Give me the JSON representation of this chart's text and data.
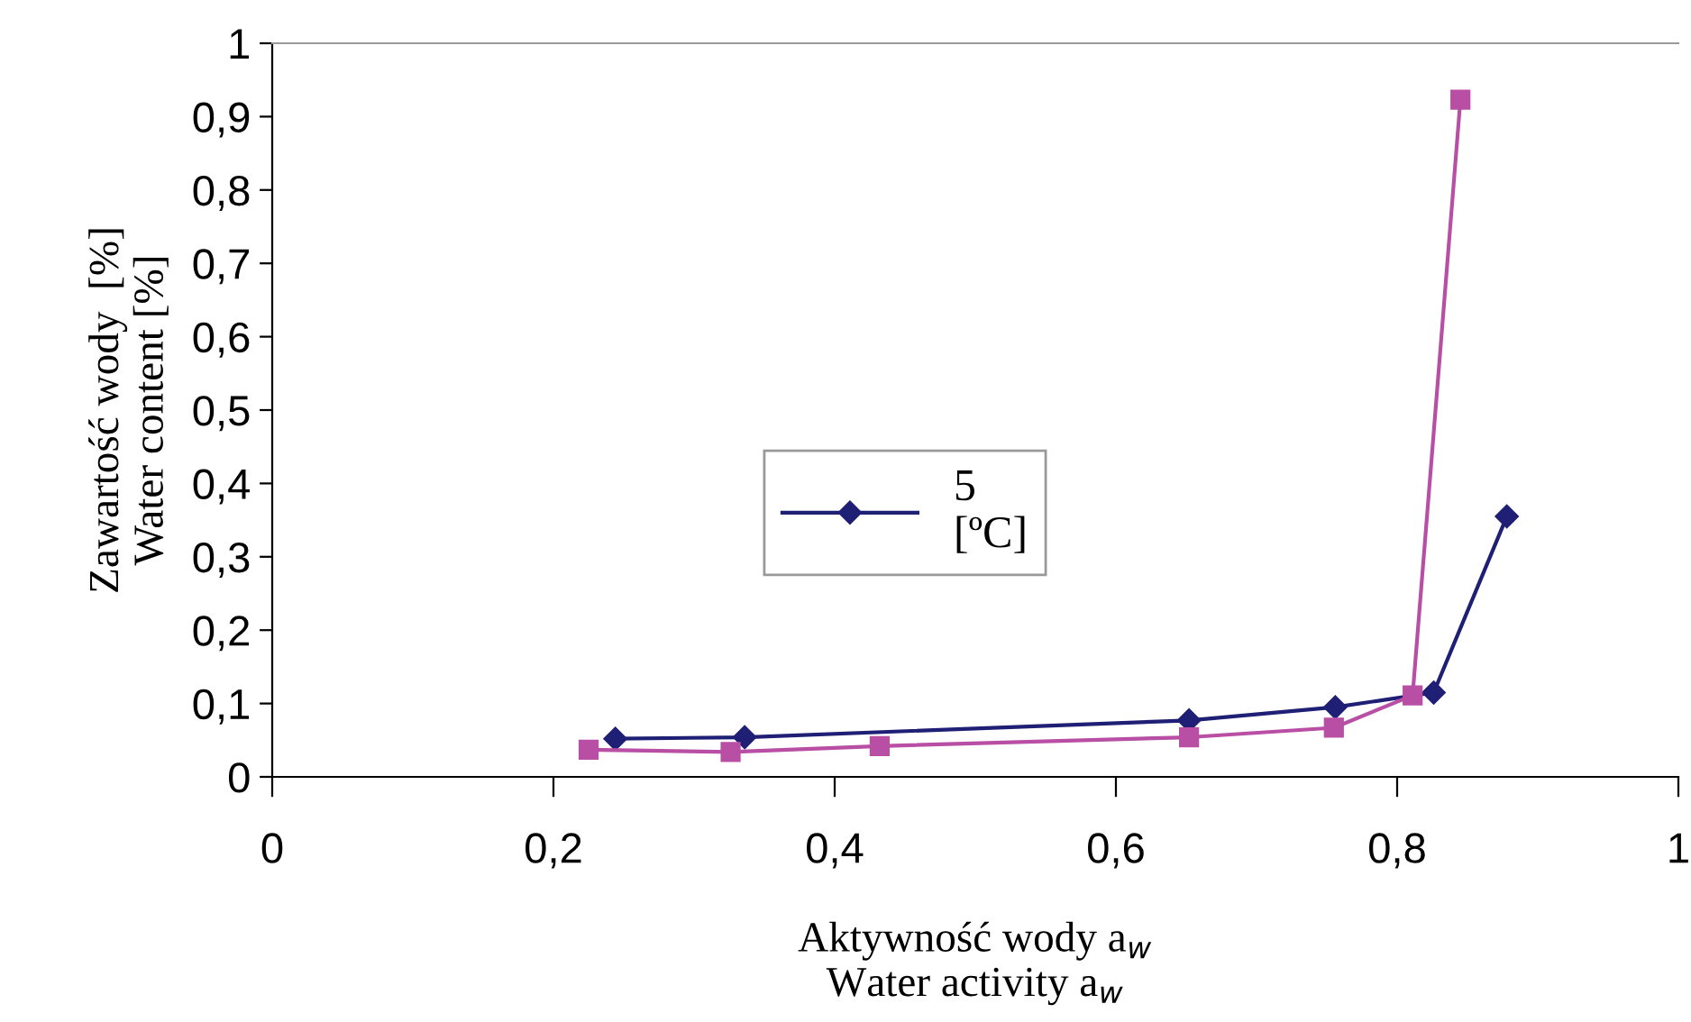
{
  "chart_data": {
    "type": "line",
    "xlabel": "Aktywność wody a$_{w}$\nWater activity a$_{w}$",
    "ylabel": "Zawartość wody  [%]\nWater content [%]",
    "xlim": [
      0,
      1
    ],
    "ylim": [
      0,
      1
    ],
    "xticks": [
      0,
      {
        "value": 0.2,
        "label": "0,2"
      },
      {
        "value": 0.4,
        "label": "0,4"
      },
      {
        "value": 0.6,
        "label": "0,6"
      },
      {
        "value": 0.8,
        "label": "0,8"
      },
      1
    ],
    "yticks": [
      0,
      {
        "value": 0.1,
        "label": "0,1"
      },
      {
        "value": 0.2,
        "label": "0,2"
      },
      {
        "value": 0.3,
        "label": "0,3"
      },
      {
        "value": 0.4,
        "label": "0,4"
      },
      {
        "value": 0.5,
        "label": "0,5"
      },
      {
        "value": 0.6,
        "label": "0,6"
      },
      {
        "value": 0.7,
        "label": "0,7"
      },
      {
        "value": 0.8,
        "label": "0,8"
      },
      {
        "value": 0.9,
        "label": "0,9"
      },
      1
    ],
    "legend": "center",
    "grid": false,
    "line_style": "solid",
    "series": [
      {
        "name": "5\n[ºC]",
        "color": "#1f1f75",
        "marker": "diamond",
        "x": [
          0.244,
          0.336,
          0.652,
          0.756,
          0.826,
          0.878
        ],
        "values": [
          0.052,
          0.054,
          0.077,
          0.095,
          0.115,
          0.355
        ]
      },
      {
        "color": "#b94fa5",
        "marker": "square",
        "x": [
          0.225,
          0.326,
          0.432,
          0.652,
          0.755,
          0.811,
          0.845
        ],
        "values": [
          0.037,
          0.034,
          0.042,
          0.054,
          0.067,
          0.111,
          0.923
        ]
      }
    ]
  }
}
